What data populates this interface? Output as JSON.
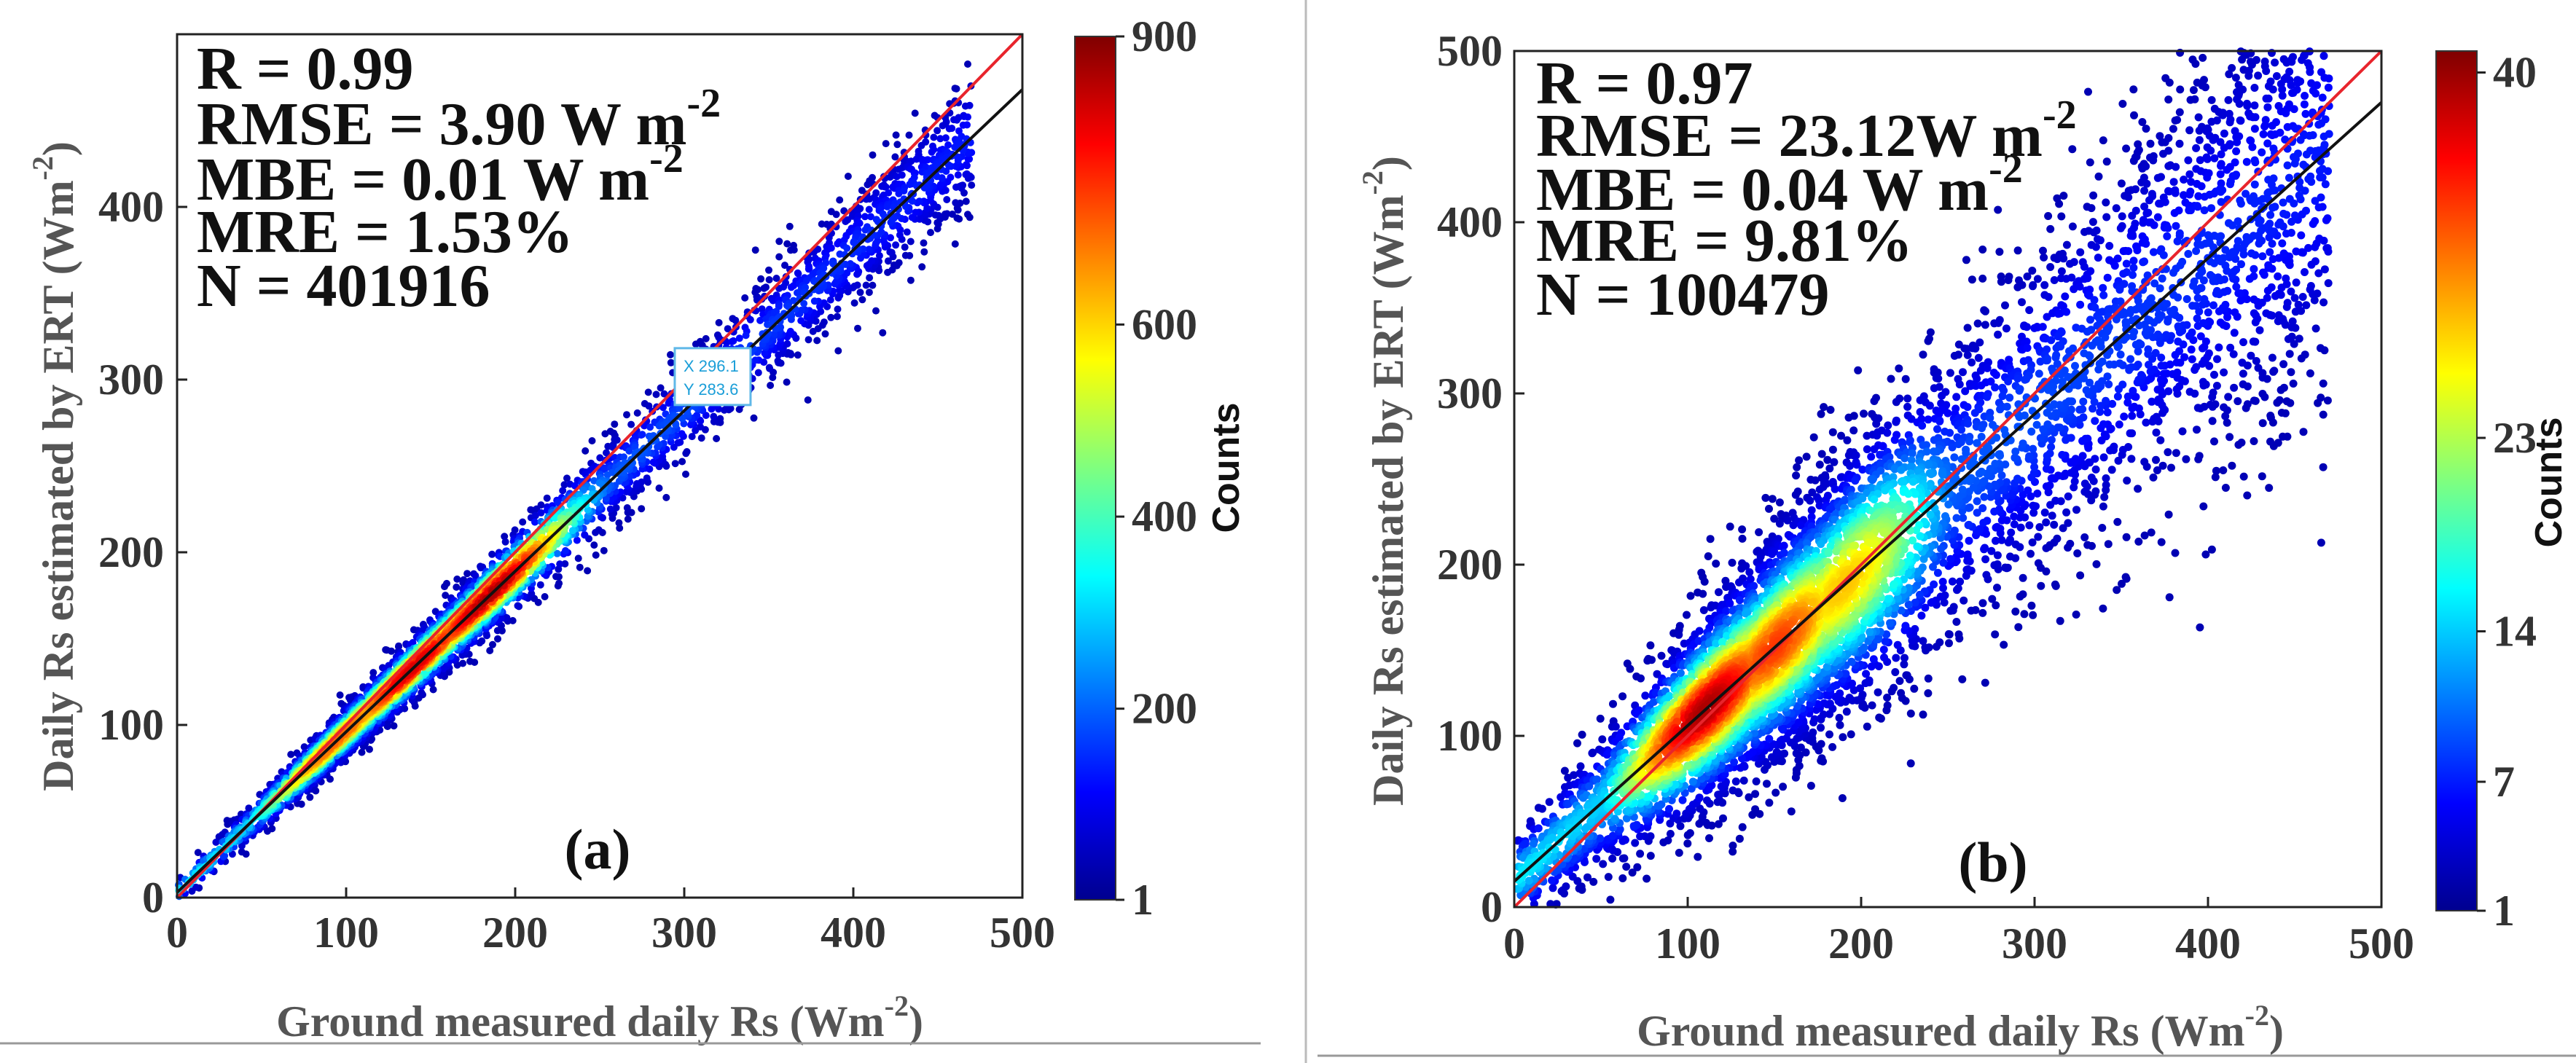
{
  "chart_data": [
    {
      "type": "scatter",
      "subtype": "density-scatter",
      "panel_label": "(a)",
      "xlabel": "Ground measured daily Rs (Wm",
      "xlabel_sup": "-2",
      "xlabel_end": ")",
      "ylabel": "Daily Rs estimated by ERT (Wm",
      "ylabel_sup": "-2",
      "ylabel_end": ")",
      "xlim": [
        0,
        500
      ],
      "ylim": [
        0,
        500
      ],
      "xticks": [
        "0",
        "100",
        "200",
        "300",
        "400",
        "500"
      ],
      "yticks": [
        "0",
        "100",
        "200",
        "300",
        "400"
      ],
      "xtick_values": [
        0,
        100,
        200,
        300,
        400,
        500
      ],
      "ytick_values": [
        0,
        100,
        200,
        300,
        400
      ],
      "stats": [
        {
          "text": "R = 0.99"
        },
        {
          "text": "RMSE = 3.90  W m",
          "sup": "-2"
        },
        {
          "text": "MBE = 0.01   W m",
          "sup": "-2"
        },
        {
          "text": "MRE = 1.53%"
        },
        {
          "text": "N = 401916"
        }
      ],
      "one_to_one_line": {
        "color": "#e8242c",
        "points": [
          [
            0,
            0
          ],
          [
            500,
            500
          ]
        ]
      },
      "fit_line": {
        "color": "#111111",
        "slope": 0.93,
        "intercept": 3
      },
      "spread": 9,
      "peaks": [
        [
          95,
          0.8
        ],
        [
          140,
          0.95
        ],
        [
          185,
          1.0
        ]
      ],
      "colorbar": {
        "label": "Counts",
        "min": 1,
        "max": 900,
        "ticks": [
          "1",
          "200",
          "400",
          "600",
          "900"
        ],
        "tick_values": [
          1,
          200,
          400,
          600,
          900
        ]
      },
      "datatip": {
        "x_label": "X 296.1",
        "y_label": "Y 283.6",
        "x": 296.1,
        "y": 283.6
      }
    },
    {
      "type": "scatter",
      "subtype": "density-scatter",
      "panel_label": "(b)",
      "xlabel": "Ground measured daily Rs (Wm",
      "xlabel_sup": "-2",
      "xlabel_end": ")",
      "ylabel": "Daily Rs estimated by ERT (Wm",
      "ylabel_sup": "-2",
      "ylabel_end": ")",
      "xlim": [
        0,
        500
      ],
      "ylim": [
        0,
        500
      ],
      "xticks": [
        "0",
        "100",
        "200",
        "300",
        "400",
        "500"
      ],
      "yticks": [
        "0",
        "100",
        "200",
        "300",
        "400",
        "500"
      ],
      "xtick_values": [
        0,
        100,
        200,
        300,
        400,
        500
      ],
      "ytick_values": [
        0,
        100,
        200,
        300,
        400,
        500
      ],
      "stats": [
        {
          "text": "R = 0.97"
        },
        {
          "text": "RMSE = 23.12W m",
          "sup": "-2"
        },
        {
          "text": "MBE = 0.04    W m",
          "sup": "-2"
        },
        {
          "text": "MRE = 9.81%"
        },
        {
          "text": "N = 100479"
        }
      ],
      "one_to_one_line": {
        "color": "#e8242c",
        "points": [
          [
            0,
            0
          ],
          [
            500,
            500
          ]
        ]
      },
      "fit_line": {
        "color": "#111111",
        "slope": 0.91,
        "intercept": 15
      },
      "spread": 32,
      "peaks": [
        [
          110,
          1.0
        ],
        [
          150,
          0.85
        ],
        [
          190,
          0.7
        ]
      ],
      "colorbar": {
        "label": "Counts",
        "min": 1,
        "max": 41,
        "ticks": [
          "1",
          "7",
          "14",
          "23",
          "40"
        ],
        "tick_values": [
          1,
          7,
          14,
          23,
          40
        ]
      }
    }
  ],
  "colors": {
    "jet": [
      "#00008f",
      "#0000ff",
      "#007fff",
      "#00ffff",
      "#7fff7f",
      "#ffff00",
      "#ff7f00",
      "#ff0000",
      "#7f0000"
    ]
  }
}
